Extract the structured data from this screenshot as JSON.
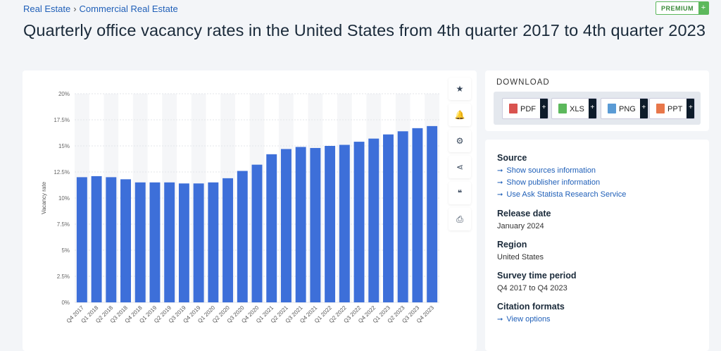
{
  "breadcrumb": {
    "item1": "Real Estate",
    "separator": "›",
    "item2": "Commercial Real Estate"
  },
  "premium": {
    "label": "PREMIUM",
    "plus": "+"
  },
  "title": "Quarterly office vacancy rates in the United States from 4th quarter 2017 to 4th quarter 2023",
  "tools": [
    {
      "icon": "star-icon",
      "glyph": "★"
    },
    {
      "icon": "bell-icon",
      "glyph": "🔔"
    },
    {
      "icon": "gear-icon",
      "glyph": "⚙"
    },
    {
      "icon": "share-icon",
      "glyph": "⋖"
    },
    {
      "icon": "quote-icon",
      "glyph": "❝"
    },
    {
      "icon": "print-icon",
      "glyph": "⎙"
    }
  ],
  "download": {
    "title": "DOWNLOAD",
    "buttons": [
      {
        "label": "PDF",
        "plus": "+",
        "icon_color": "#d9534f"
      },
      {
        "label": "XLS",
        "plus": "+",
        "icon_color": "#5cb85c"
      },
      {
        "label": "PNG",
        "plus": "+",
        "icon_color": "#5a9bd5"
      },
      {
        "label": "PPT",
        "plus": "+",
        "icon_color": "#e8774a"
      }
    ]
  },
  "info": {
    "source_heading": "Source",
    "source_links": [
      "Show sources information",
      "Show publisher information",
      "Use Ask Statista Research Service"
    ],
    "release_heading": "Release date",
    "release_value": "January 2024",
    "region_heading": "Region",
    "region_value": "United States",
    "survey_heading": "Survey time period",
    "survey_value": "Q4 2017 to Q4 2023",
    "citation_heading": "Citation formats",
    "citation_link": "View options"
  },
  "chart_data": {
    "type": "bar",
    "ylabel": "Vacancy rate",
    "xlabel": "",
    "ylim": [
      0,
      20
    ],
    "yticks": [
      "0%",
      "2.5%",
      "5%",
      "7.5%",
      "10%",
      "12.5%",
      "15%",
      "17.5%",
      "20%"
    ],
    "grid": true,
    "bar_color": "#3d6fd9",
    "categories": [
      "Q4 2017",
      "Q1 2018",
      "Q2 2018",
      "Q3 2018",
      "Q4 2018",
      "Q1 2019",
      "Q2 2019",
      "Q3 2019",
      "Q4 2019",
      "Q1 2020",
      "Q2 2020",
      "Q3 2020",
      "Q4 2020",
      "Q1 2021",
      "Q2 2021",
      "Q3 2021",
      "Q4 2021",
      "Q1 2022",
      "Q2 2022",
      "Q3 2022",
      "Q4 2022",
      "Q1 2023",
      "Q2 2023",
      "Q3 2023",
      "Q4 2023"
    ],
    "values": [
      12.0,
      12.1,
      12.0,
      11.8,
      11.5,
      11.5,
      11.5,
      11.4,
      11.4,
      11.5,
      11.9,
      12.6,
      13.2,
      14.2,
      14.7,
      14.9,
      14.8,
      15.0,
      15.1,
      15.4,
      15.7,
      16.1,
      16.4,
      16.7,
      16.9
    ]
  }
}
